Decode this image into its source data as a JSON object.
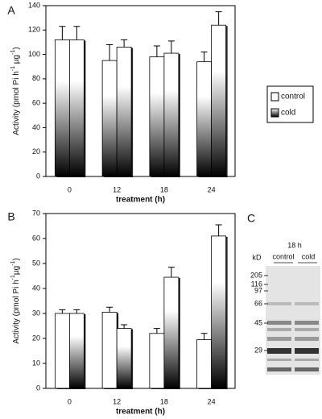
{
  "chart_data": [
    {
      "type": "bar",
      "panel_label": "A",
      "x_label": "treatment (h)",
      "y_label_parts": [
        "Activity (pmol Pi h",
        "-1",
        " µg",
        "-1",
        ")"
      ],
      "categories": [
        "0",
        "12",
        "18",
        "24"
      ],
      "series": [
        {
          "name": "control",
          "color": "#000000",
          "gradient": true,
          "values": [
            112,
            95,
            98,
            94
          ],
          "errors": [
            11,
            13,
            9,
            8
          ]
        },
        {
          "name": "cold",
          "color": "#000000",
          "gradient": true,
          "values": [
            112,
            106,
            101,
            124
          ],
          "errors": [
            11,
            6,
            10,
            11
          ]
        }
      ],
      "legend_swatches": [
        "#ffffff",
        "gradient"
      ],
      "ylim": [
        0,
        140
      ],
      "yticks": [
        0,
        20,
        40,
        60,
        80,
        100,
        120,
        140
      ]
    },
    {
      "type": "bar",
      "panel_label": "B",
      "x_label": "treatment (h)",
      "y_label_parts": [
        "Activity (pmol Pi h",
        "-1",
        "µg",
        "-1",
        ")"
      ],
      "categories": [
        "0",
        "12",
        "18",
        "24"
      ],
      "series": [
        {
          "color": "#ffffff",
          "gradient": false,
          "values": [
            30,
            30.5,
            22,
            19.5
          ],
          "errors": [
            1.5,
            2,
            2,
            2.5
          ]
        },
        {
          "color": "#000000",
          "gradient": true,
          "values": [
            30,
            24,
            44.5,
            61
          ],
          "errors": [
            1.5,
            1.5,
            4,
            4.5
          ]
        }
      ],
      "ylim": [
        0,
        70
      ],
      "yticks": [
        0,
        10,
        20,
        30,
        40,
        50,
        60,
        70
      ]
    }
  ],
  "gel": {
    "panel_label": "C",
    "time": "18 h",
    "unit": "kD",
    "lanes": [
      "control",
      "cold"
    ],
    "markers": [
      205,
      116,
      97,
      66,
      45,
      29
    ]
  }
}
